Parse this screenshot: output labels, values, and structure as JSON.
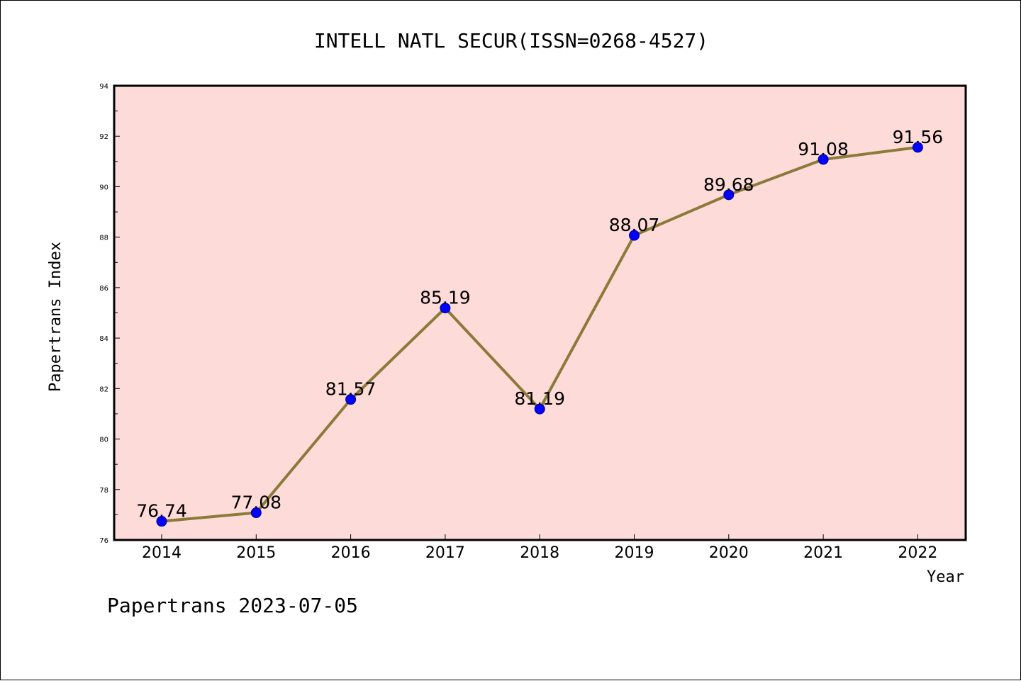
{
  "chart_data": {
    "type": "line",
    "title": "INTELL NATL SECUR(ISSN=0268-4527)",
    "xlabel": "Year",
    "ylabel": "Papertrans Index",
    "categories": [
      "2014",
      "2015",
      "2016",
      "2017",
      "2018",
      "2019",
      "2020",
      "2021",
      "2022"
    ],
    "series": [
      {
        "values": [
          76.74,
          77.08,
          81.57,
          85.19,
          81.19,
          88.07,
          89.68,
          91.08,
          91.56
        ],
        "labels": [
          "76.74",
          "77.08",
          "81.57",
          "85.19",
          "81.19",
          "88.07",
          "89.68",
          "91.08",
          "91.56"
        ],
        "line_color": "#8b7a3a",
        "marker_color": "#0000ff"
      }
    ],
    "ylim": [
      76,
      94
    ],
    "yticks": [
      "76",
      "78",
      "80",
      "82",
      "84",
      "86",
      "88",
      "90",
      "92",
      "94"
    ],
    "plot_background": "#fddbd9",
    "grid": false
  },
  "footer": "Papertrans 2023-07-05"
}
